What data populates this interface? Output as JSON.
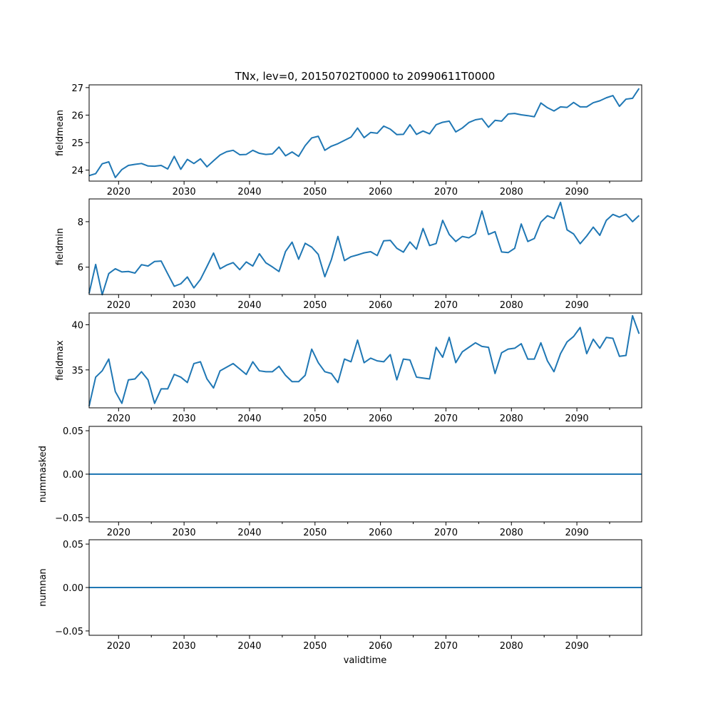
{
  "figure_title": "TNx, lev=0, 20150702T0000 to 20990611T0000",
  "xlabel": "validtime",
  "line_color": "#1f77b4",
  "x_major_ticks": [
    2020,
    2030,
    2040,
    2050,
    2060,
    2070,
    2080,
    2090
  ],
  "x_minor_ticks": [
    2025,
    2035,
    2045,
    2055,
    2065,
    2075,
    2085,
    2095
  ],
  "chart_data": [
    {
      "type": "line",
      "title": "TNx, lev=0, 20150702T0000 to 20990611T0000",
      "ylabel": "fieldmean",
      "xlabel": "",
      "xlim": [
        2015.5,
        2099.9
      ],
      "ylim": [
        23.6,
        27.1
      ],
      "yticks": [
        24,
        25,
        26,
        27
      ],
      "x": [
        2015.5,
        2016.5,
        2017.5,
        2018.5,
        2019.5,
        2020.5,
        2021.5,
        2022.5,
        2023.5,
        2024.5,
        2025.5,
        2026.5,
        2027.5,
        2028.5,
        2029.5,
        2030.5,
        2031.5,
        2032.5,
        2033.5,
        2034.5,
        2035.5,
        2036.5,
        2037.5,
        2038.5,
        2039.5,
        2040.5,
        2041.5,
        2042.5,
        2043.5,
        2044.5,
        2045.5,
        2046.5,
        2047.5,
        2048.5,
        2049.5,
        2050.5,
        2051.5,
        2052.5,
        2053.5,
        2054.5,
        2055.5,
        2056.5,
        2057.5,
        2058.5,
        2059.5,
        2060.5,
        2061.5,
        2062.5,
        2063.5,
        2064.5,
        2065.5,
        2066.5,
        2067.5,
        2068.5,
        2069.5,
        2070.5,
        2071.5,
        2072.5,
        2073.5,
        2074.5,
        2075.5,
        2076.5,
        2077.5,
        2078.5,
        2079.5,
        2080.5,
        2081.5,
        2082.5,
        2083.5,
        2084.5,
        2085.5,
        2086.5,
        2087.5,
        2088.5,
        2089.5,
        2090.5,
        2091.5,
        2092.5,
        2093.5,
        2094.5,
        2095.5,
        2096.5,
        2097.5,
        2098.5,
        2099.5
      ],
      "values": [
        23.8,
        23.87,
        24.23,
        24.3,
        23.73,
        24.02,
        24.17,
        24.21,
        24.24,
        24.15,
        24.14,
        24.17,
        24.04,
        24.5,
        24.03,
        24.39,
        24.24,
        24.41,
        24.12,
        24.34,
        24.55,
        24.67,
        24.72,
        24.56,
        24.57,
        24.72,
        24.61,
        24.57,
        24.59,
        24.84,
        24.52,
        24.66,
        24.5,
        24.89,
        25.17,
        25.23,
        24.72,
        24.87,
        24.96,
        25.08,
        25.2,
        25.53,
        25.18,
        25.37,
        25.34,
        25.6,
        25.49,
        25.29,
        25.3,
        25.65,
        25.3,
        25.42,
        25.32,
        25.65,
        25.74,
        25.78,
        25.39,
        25.53,
        25.73,
        25.83,
        25.87,
        25.56,
        25.81,
        25.78,
        26.04,
        26.06,
        26.01,
        25.98,
        25.94,
        26.44,
        26.27,
        26.15,
        26.3,
        26.28,
        26.46,
        26.3,
        26.3,
        26.45,
        26.52,
        26.63,
        26.71,
        26.32,
        26.58,
        26.61,
        26.97
      ]
    },
    {
      "type": "line",
      "ylabel": "fieldmin",
      "xlabel": "",
      "xlim": [
        2015.5,
        2099.9
      ],
      "ylim": [
        4.8,
        9.0
      ],
      "yticks": [
        6,
        8
      ],
      "x": [
        2015.5,
        2016.5,
        2017.5,
        2018.5,
        2019.5,
        2020.5,
        2021.5,
        2022.5,
        2023.5,
        2024.5,
        2025.5,
        2026.5,
        2027.5,
        2028.5,
        2029.5,
        2030.5,
        2031.5,
        2032.5,
        2033.5,
        2034.5,
        2035.5,
        2036.5,
        2037.5,
        2038.5,
        2039.5,
        2040.5,
        2041.5,
        2042.5,
        2043.5,
        2044.5,
        2045.5,
        2046.5,
        2047.5,
        2048.5,
        2049.5,
        2050.5,
        2051.5,
        2052.5,
        2053.5,
        2054.5,
        2055.5,
        2056.5,
        2057.5,
        2058.5,
        2059.5,
        2060.5,
        2061.5,
        2062.5,
        2063.5,
        2064.5,
        2065.5,
        2066.5,
        2067.5,
        2068.5,
        2069.5,
        2070.5,
        2071.5,
        2072.5,
        2073.5,
        2074.5,
        2075.5,
        2076.5,
        2077.5,
        2078.5,
        2079.5,
        2080.5,
        2081.5,
        2082.5,
        2083.5,
        2084.5,
        2085.5,
        2086.5,
        2087.5,
        2088.5,
        2089.5,
        2090.5,
        2091.5,
        2092.5,
        2093.5,
        2094.5,
        2095.5,
        2096.5,
        2097.5,
        2098.5,
        2099.5
      ],
      "values": [
        4.85,
        6.12,
        4.79,
        5.72,
        5.93,
        5.79,
        5.81,
        5.74,
        6.11,
        6.05,
        6.25,
        6.27,
        5.71,
        5.16,
        5.27,
        5.57,
        5.09,
        5.46,
        6.03,
        6.62,
        5.93,
        6.09,
        6.2,
        5.89,
        6.23,
        6.05,
        6.59,
        6.19,
        6.01,
        5.81,
        6.69,
        7.1,
        6.35,
        7.05,
        6.88,
        6.56,
        5.58,
        6.33,
        7.35,
        6.29,
        6.46,
        6.54,
        6.63,
        6.68,
        6.51,
        7.16,
        7.18,
        6.83,
        6.66,
        7.11,
        6.79,
        7.7,
        6.95,
        7.04,
        8.06,
        7.44,
        7.13,
        7.35,
        7.29,
        7.47,
        8.47,
        7.44,
        7.56,
        6.67,
        6.64,
        6.83,
        7.9,
        7.13,
        7.26,
        7.98,
        8.26,
        8.14,
        8.85,
        7.64,
        7.46,
        7.03,
        7.37,
        7.76,
        7.4,
        8.06,
        8.32,
        8.2,
        8.33,
        8.0,
        8.27
      ]
    },
    {
      "type": "line",
      "ylabel": "fieldmax",
      "xlabel": "",
      "xlim": [
        2015.5,
        2099.9
      ],
      "ylim": [
        30.8,
        41.3
      ],
      "yticks": [
        35,
        40
      ],
      "x": [
        2015.5,
        2016.5,
        2017.5,
        2018.5,
        2019.5,
        2020.5,
        2021.5,
        2022.5,
        2023.5,
        2024.5,
        2025.5,
        2026.5,
        2027.5,
        2028.5,
        2029.5,
        2030.5,
        2031.5,
        2032.5,
        2033.5,
        2034.5,
        2035.5,
        2036.5,
        2037.5,
        2038.5,
        2039.5,
        2040.5,
        2041.5,
        2042.5,
        2043.5,
        2044.5,
        2045.5,
        2046.5,
        2047.5,
        2048.5,
        2049.5,
        2050.5,
        2051.5,
        2052.5,
        2053.5,
        2054.5,
        2055.5,
        2056.5,
        2057.5,
        2058.5,
        2059.5,
        2060.5,
        2061.5,
        2062.5,
        2063.5,
        2064.5,
        2065.5,
        2066.5,
        2067.5,
        2068.5,
        2069.5,
        2070.5,
        2071.5,
        2072.5,
        2073.5,
        2074.5,
        2075.5,
        2076.5,
        2077.5,
        2078.5,
        2079.5,
        2080.5,
        2081.5,
        2082.5,
        2083.5,
        2084.5,
        2085.5,
        2086.5,
        2087.5,
        2088.5,
        2089.5,
        2090.5,
        2091.5,
        2092.5,
        2093.5,
        2094.5,
        2095.5,
        2096.5,
        2097.5,
        2098.5,
        2099.5
      ],
      "values": [
        31.0,
        34.2,
        34.9,
        36.2,
        32.6,
        31.3,
        33.9,
        34.0,
        34.8,
        33.9,
        31.3,
        32.9,
        32.9,
        34.5,
        34.2,
        33.6,
        35.7,
        35.9,
        34.0,
        33.0,
        34.9,
        35.3,
        35.7,
        35.1,
        34.5,
        35.9,
        34.9,
        34.8,
        34.8,
        35.4,
        34.4,
        33.7,
        33.7,
        34.4,
        37.3,
        35.8,
        34.8,
        34.6,
        33.6,
        36.2,
        35.9,
        38.3,
        35.8,
        36.3,
        36.0,
        35.9,
        36.7,
        33.9,
        36.2,
        36.1,
        34.2,
        34.1,
        34.0,
        37.5,
        36.4,
        38.6,
        35.8,
        37.0,
        37.5,
        38.0,
        37.6,
        37.5,
        34.6,
        36.9,
        37.3,
        37.4,
        37.9,
        36.2,
        36.2,
        38.0,
        36.0,
        34.8,
        36.8,
        38.1,
        38.7,
        39.7,
        36.8,
        38.4,
        37.4,
        38.6,
        38.5,
        36.5,
        36.6,
        41.0,
        39.0
      ]
    },
    {
      "type": "line",
      "ylabel": "nummasked",
      "xlabel": "",
      "xlim": [
        2015.5,
        2099.9
      ],
      "ylim": [
        -0.055,
        0.055
      ],
      "yticks": [
        -0.05,
        0.0,
        0.05
      ],
      "ytick_labels": [
        "−0.05",
        "0.00",
        "0.05"
      ],
      "x": [
        2015.5,
        2099.9
      ],
      "values": [
        0.0,
        0.0
      ]
    },
    {
      "type": "line",
      "ylabel": "numnan",
      "xlabel": "validtime",
      "xlim": [
        2015.5,
        2099.9
      ],
      "ylim": [
        -0.055,
        0.055
      ],
      "yticks": [
        -0.05,
        0.0,
        0.05
      ],
      "ytick_labels": [
        "−0.05",
        "0.00",
        "0.05"
      ],
      "x": [
        2015.5,
        2099.9
      ],
      "values": [
        0.0,
        0.0
      ]
    }
  ]
}
